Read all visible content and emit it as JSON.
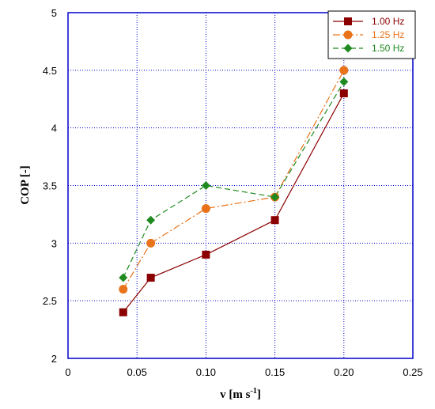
{
  "chart_data": {
    "type": "line",
    "xlabel": "v [m s",
    "xlabel_sup": "-1",
    "xlabel_end": "]",
    "ylabel": "COP [-]",
    "xlim": [
      0,
      0.25
    ],
    "ylim": [
      2,
      5
    ],
    "xticks": [
      0,
      0.05,
      0.1,
      0.15,
      0.2,
      0.25
    ],
    "xtick_labels": [
      "0",
      "0.05",
      "0.10",
      "0.15",
      "0.20",
      "0.25"
    ],
    "yticks": [
      2,
      2.5,
      3,
      3.5,
      4,
      4.5,
      5
    ],
    "ytick_labels": [
      "2",
      "2.5",
      "3",
      "3.5",
      "4",
      "4.5",
      "5"
    ],
    "grid": true,
    "legend_position": "top-right",
    "colors": {
      "axis": "#0000cc",
      "grid": "#0000cc"
    },
    "series": [
      {
        "name": "1.00 Hz",
        "color": "#8b0000",
        "marker": "square",
        "dash": "solid",
        "x": [
          0.04,
          0.06,
          0.1,
          0.15,
          0.2
        ],
        "y": [
          2.4,
          2.7,
          2.9,
          3.2,
          4.3
        ]
      },
      {
        "name": "1.25 Hz",
        "color": "#e8731a",
        "marker": "circle",
        "dash": "dashdot",
        "x": [
          0.04,
          0.06,
          0.1,
          0.15,
          0.2
        ],
        "y": [
          2.6,
          3.0,
          3.3,
          3.4,
          4.5
        ]
      },
      {
        "name": "1.50 Hz",
        "color": "#1f8a1f",
        "marker": "diamond",
        "dash": "dashed",
        "x": [
          0.04,
          0.06,
          0.1,
          0.15,
          0.2
        ],
        "y": [
          2.7,
          3.2,
          3.5,
          3.4,
          4.4
        ]
      }
    ]
  }
}
